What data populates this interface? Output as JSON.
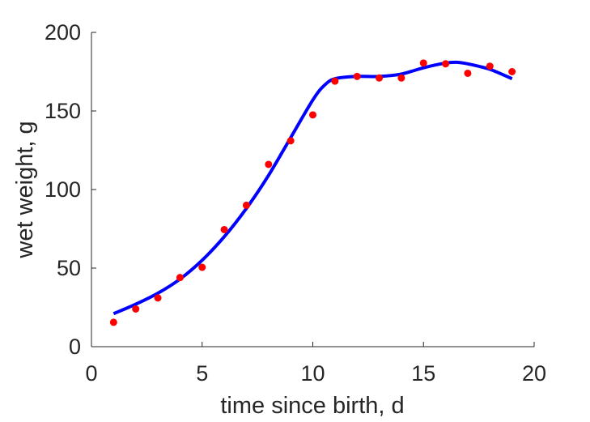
{
  "chart_data": {
    "type": "scatter",
    "xlabel": "time since birth, d",
    "ylabel": "wet weight, g",
    "xlim": [
      0,
      20
    ],
    "ylim": [
      0,
      200
    ],
    "xticks": [
      0,
      5,
      10,
      15,
      20
    ],
    "yticks": [
      0,
      50,
      100,
      150,
      200
    ],
    "grid": false,
    "series": [
      {
        "kind": "points",
        "color": "#ff0000",
        "x": [
          1,
          2,
          3,
          4,
          5,
          6,
          7,
          8,
          9,
          10,
          11,
          12,
          13,
          14,
          15,
          16,
          17,
          18,
          19
        ],
        "y": [
          15.5,
          24,
          31,
          44,
          50.5,
          74.5,
          90,
          116,
          131,
          147.5,
          169,
          172,
          171,
          171,
          180.5,
          180,
          174,
          178.5,
          175
        ]
      },
      {
        "kind": "line",
        "color": "#0000ff",
        "x": [
          1,
          2,
          3,
          4,
          5,
          6,
          7,
          8,
          9,
          10,
          10.5,
          11,
          12,
          13,
          14,
          15,
          16,
          16.5,
          17,
          18,
          19
        ],
        "y": [
          21,
          27,
          34,
          43,
          55,
          70,
          88,
          109,
          133,
          157,
          166,
          170.5,
          172,
          172,
          173.5,
          177.5,
          180.5,
          181,
          180,
          176.5,
          170.5
        ]
      }
    ]
  }
}
